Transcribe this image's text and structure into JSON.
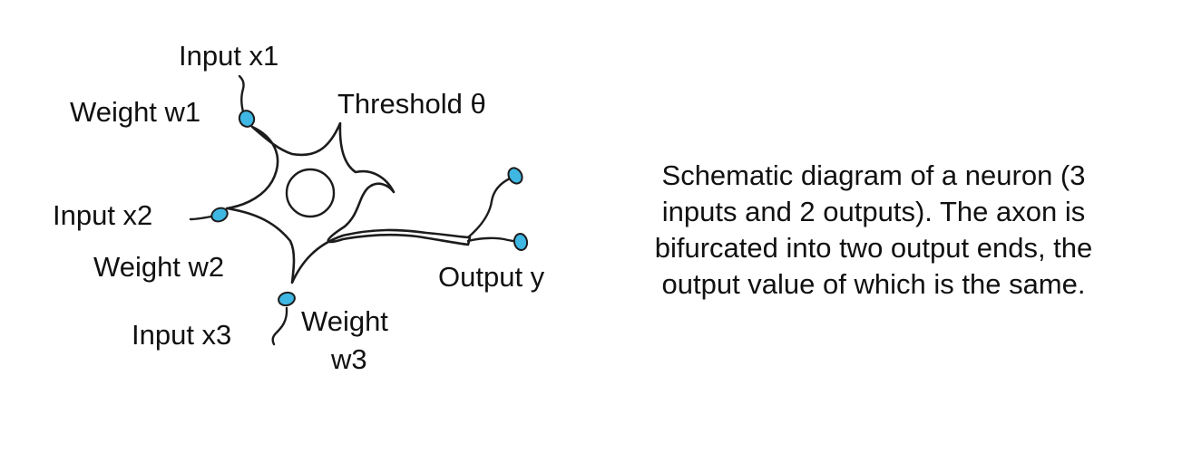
{
  "diagram": {
    "labels": {
      "input_x1": "Input x1",
      "weight_w1": "Weight w1",
      "threshold": "Threshold θ",
      "input_x2": "Input x2",
      "weight_w2": "Weight w2",
      "input_x3": "Input x3",
      "weight_w3_line1": "Weight",
      "weight_w3_line2": "w3",
      "output_y": "Output y"
    },
    "caption": {
      "line1": "Schematic diagram of a neuron (3",
      "line2": "inputs and 2 outputs). The axon is",
      "line3": "bifurcated into two output ends, the",
      "line4": "output value of which is the same."
    },
    "colors": {
      "terminal_fill": "#3fb7e3",
      "outline": "#1c1c1c",
      "background": "#ffffff"
    }
  }
}
